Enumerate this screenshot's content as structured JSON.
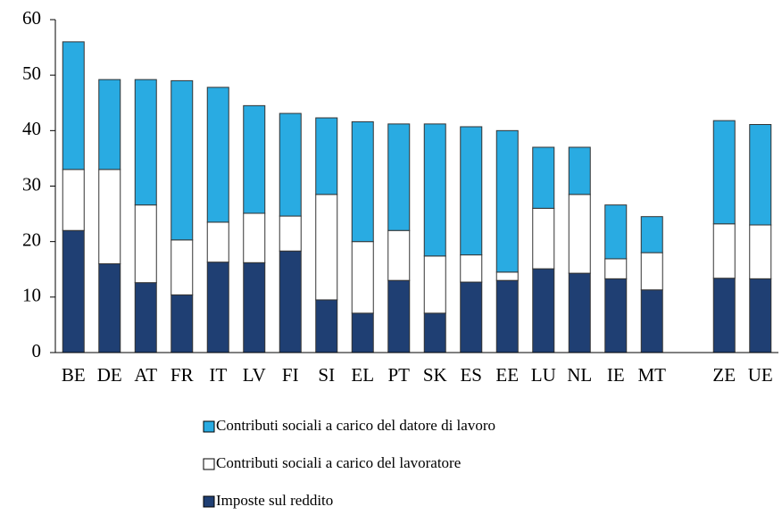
{
  "chart_data": {
    "type": "stacked-bar",
    "categories": [
      "BE",
      "DE",
      "AT",
      "FR",
      "IT",
      "LV",
      "FI",
      "SI",
      "EL",
      "PT",
      "SK",
      "ES",
      "EE",
      "LU",
      "NL",
      "IE",
      "MT",
      null,
      "ZE",
      "UE"
    ],
    "series": [
      {
        "name": "Contributi sociali a carico del datore di lavoro",
        "color": "#29abe2",
        "values": [
          23,
          16.2,
          22.6,
          28.7,
          24.3,
          19.4,
          18.5,
          13.8,
          21.6,
          19.2,
          23.8,
          23.1,
          25.5,
          11,
          8.5,
          9.7,
          6.5,
          null,
          18.6,
          18.1
        ]
      },
      {
        "name": "Contributi sociali a carico del lavoratore",
        "color": "#ffffff",
        "values": [
          11,
          17,
          14,
          9.9,
          7.2,
          8.9,
          6.3,
          19,
          12.9,
          9,
          10.3,
          4.9,
          1.5,
          10.9,
          14.2,
          3.6,
          6.7,
          null,
          9.8,
          9.7
        ]
      },
      {
        "name": "Imposte sul reddito",
        "color": "#1f3f73",
        "values": [
          22,
          16,
          12.6,
          10.4,
          16.3,
          16.2,
          18.3,
          9.5,
          7.1,
          13,
          7.1,
          12.7,
          13,
          15.1,
          14.3,
          13.3,
          11.3,
          null,
          13.4,
          13.3
        ]
      }
    ],
    "ylim": [
      0,
      60
    ],
    "yticks": [
      0,
      10,
      20,
      30,
      40,
      50,
      60
    ],
    "grid": false
  }
}
